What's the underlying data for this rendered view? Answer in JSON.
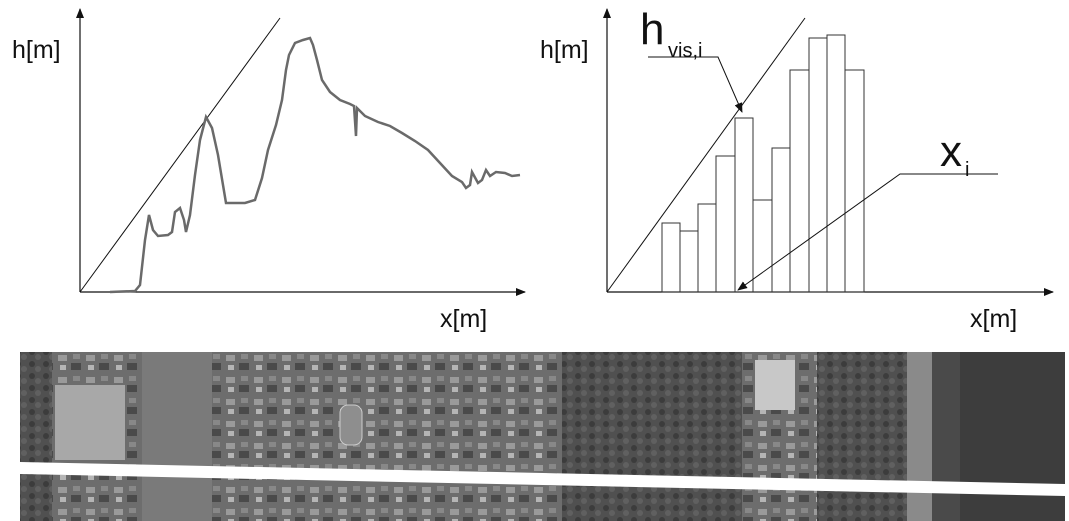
{
  "left_panel": {
    "y_axis_label": "h[m]",
    "x_axis_label": "x[m]"
  },
  "right_panel": {
    "y_axis_label": "h[m]",
    "x_axis_label": "x[m]",
    "annotation_h": {
      "main": "h",
      "subscript": "vis,i"
    },
    "annotation_x": {
      "main": "x",
      "subscript": "i"
    }
  }
}
